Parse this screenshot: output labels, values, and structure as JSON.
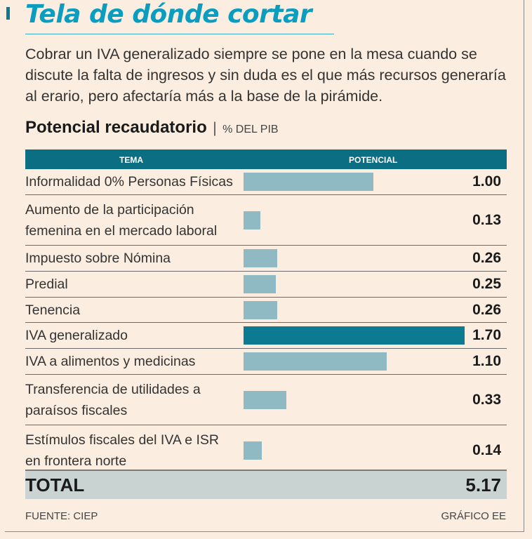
{
  "title": "Tela de dónde cortar",
  "intro": "Cobrar un IVA generalizado siempre se pone en la mesa cuando se discute la falta de ingresos y sin duda es el que más recursos generaría al erario, pero afectaría más a la base de la pirámide.",
  "subtitle": {
    "main": "Potencial recaudatorio",
    "separator": "|",
    "unit": "% DEL PIB"
  },
  "colors": {
    "accent": "#0a9dc0",
    "header": "#0c6e82",
    "bar": "#8fb9c3",
    "bar_highlight": "#0c7a90",
    "total_bg": "#c9d3d2"
  },
  "chart_data": {
    "type": "bar",
    "orientation": "horizontal",
    "title": "Potencial recaudatorio",
    "unit": "% DEL PIB",
    "column_headers": {
      "topic": "TEMA",
      "potential": "POTENCIAL"
    },
    "categories": [
      "Informalidad 0% Personas Físicas",
      "Aumento de la participación femenina en el mercado laboral",
      "Impuesto sobre Nómina",
      "Predial",
      "Tenencia",
      "IVA generalizado",
      "IVA a alimentos y medicinas",
      "Transferencia de utilidades a paraísos fiscales",
      "Estímulos fiscales del IVA e ISR en frontera norte"
    ],
    "values": [
      1.0,
      0.13,
      0.26,
      0.25,
      0.26,
      1.7,
      1.1,
      0.33,
      0.14
    ],
    "value_labels": [
      "1.00",
      "0.13",
      "0.26",
      "0.25",
      "0.26",
      "1.70",
      "1.10",
      "0.33",
      "0.14"
    ],
    "highlight": "IVA generalizado",
    "xlim": [
      0,
      1.7
    ],
    "total": {
      "label": "TOTAL",
      "value": "5.17"
    }
  },
  "footer": {
    "source": "FUENTE: CIEP",
    "credit": "GRÁFICO EE"
  }
}
